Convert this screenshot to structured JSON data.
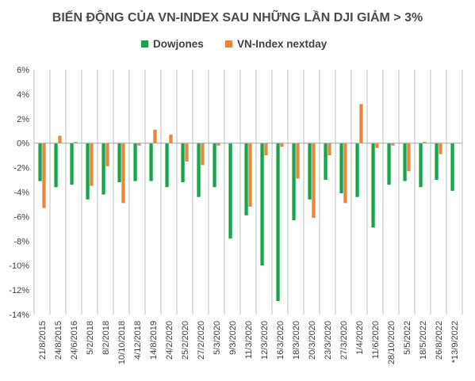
{
  "chart_data": {
    "type": "bar",
    "title": "BIẾN ĐỘNG CỦA VN-INDEX SAU NHỮNG LẦN DJI GIẢM > 3%",
    "ylim": [
      -14,
      6
    ],
    "yticks": [
      "6%",
      "4%",
      "2%",
      "0%",
      "-2%",
      "-4%",
      "-6%",
      "-8%",
      "-10%",
      "-12%",
      "-14%"
    ],
    "ytick_values": [
      6,
      4,
      2,
      0,
      -2,
      -4,
      -6,
      -8,
      -10,
      -12,
      -14
    ],
    "legend_position": "top",
    "grid": "vertical",
    "x_tick_labels": [
      "21/8/2015",
      "24/8/2015",
      "24/6/2016",
      "5/2/2018",
      "8/2/2018",
      "10/10/2018",
      "4/12/2018",
      "14/8/2019",
      "24/2/2020",
      "25/2/2020",
      "27/2/2020",
      "5/3/2020",
      "9/3/2020",
      "11/3/2020",
      "12/3/2020",
      "16/3/2020",
      "18/3/2020",
      "20/3/2020",
      "23/3/2020",
      "27/3/2020",
      "1/4/2020",
      "11/6/2020",
      "28/10/2020",
      "5/5/2022",
      "18/5/2022",
      "26/8/2022",
      "*13/9/2022"
    ],
    "series": [
      {
        "name": "Dowjones",
        "color": "#1aa34a",
        "values": [
          -3.1,
          -3.6,
          -3.4,
          -4.6,
          -4.2,
          -3.2,
          -3.1,
          -3.1,
          -3.6,
          -3.2,
          -4.4,
          -3.6,
          -7.8,
          -5.9,
          -10.0,
          -12.9,
          -6.3,
          -4.6,
          -3.0,
          -4.1,
          -4.4,
          -6.9,
          -3.4,
          -3.1,
          -3.6,
          -3.0,
          -3.9
        ]
      },
      {
        "name": "VN-Index nextday",
        "color": "#f0843c",
        "values": [
          -5.3,
          0.6,
          0.1,
          -3.5,
          -1.9,
          -4.9,
          -0.2,
          1.1,
          0.7,
          -1.5,
          -1.8,
          -0.2,
          0.0,
          -5.2,
          -1.0,
          -0.3,
          -2.9,
          -6.1,
          -1.0,
          -4.9,
          3.2,
          -0.4,
          -0.2,
          -2.3,
          0.1,
          -0.9,
          0.0
        ]
      }
    ]
  }
}
